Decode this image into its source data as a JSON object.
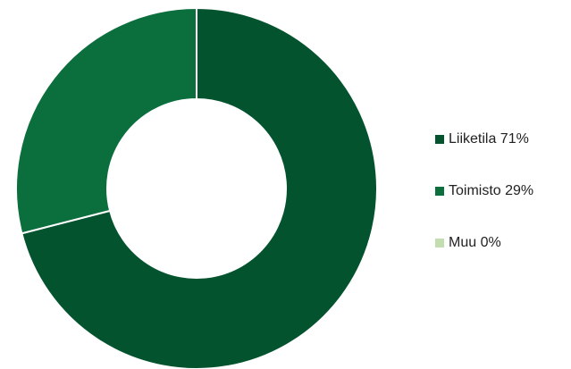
{
  "chart_data": {
    "type": "pie",
    "variant": "donut",
    "title": "",
    "categories": [
      "Liiketila",
      "Toimisto",
      "Muu"
    ],
    "values": [
      71,
      29,
      0
    ],
    "unit": "%",
    "colors": [
      "#03532E",
      "#0B6E3D",
      "#C2DDB0"
    ],
    "legend_position": "right",
    "legend": [
      {
        "label": "Liiketila 71%",
        "color": "#03532E"
      },
      {
        "label": "Toimisto 29%",
        "color": "#0B6E3D"
      },
      {
        "label": "Muu 0%",
        "color": "#C2DDB0"
      }
    ]
  }
}
